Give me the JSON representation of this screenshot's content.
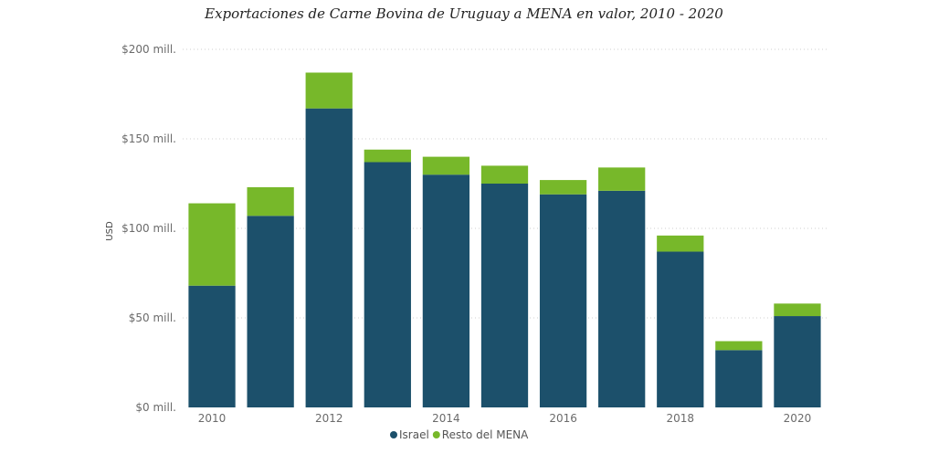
{
  "chart_data": {
    "type": "bar",
    "stacked": true,
    "title": "Exportaciones de Carne Bovina de Uruguay a MENA en valor, 2010 - 2020",
    "xlabel": "",
    "ylabel": "USD",
    "categories": [
      "2010",
      "2011",
      "2012",
      "2013",
      "2014",
      "2015",
      "2016",
      "2017",
      "2018",
      "2019",
      "2020"
    ],
    "x_tick_labels": [
      "2010",
      "2012",
      "2014",
      "2016",
      "2018",
      "2020"
    ],
    "y_ticks": [
      0,
      50,
      100,
      150,
      200
    ],
    "y_tick_labels": [
      "$0 mill.",
      "$50 mill.",
      "$100 mill.",
      "$150 mill.",
      "$200 mill."
    ],
    "ylim": [
      0,
      200
    ],
    "series": [
      {
        "name": "Israel",
        "color": "#1c506b",
        "values": [
          68,
          107,
          167,
          137,
          130,
          125,
          119,
          121,
          87,
          32,
          51
        ]
      },
      {
        "name": "Resto del MENA",
        "color": "#77b82a",
        "values": [
          46,
          16,
          20,
          7,
          10,
          10,
          8,
          13,
          9,
          5,
          7
        ]
      }
    ],
    "grid": true,
    "legend_position": "bottom-center"
  }
}
